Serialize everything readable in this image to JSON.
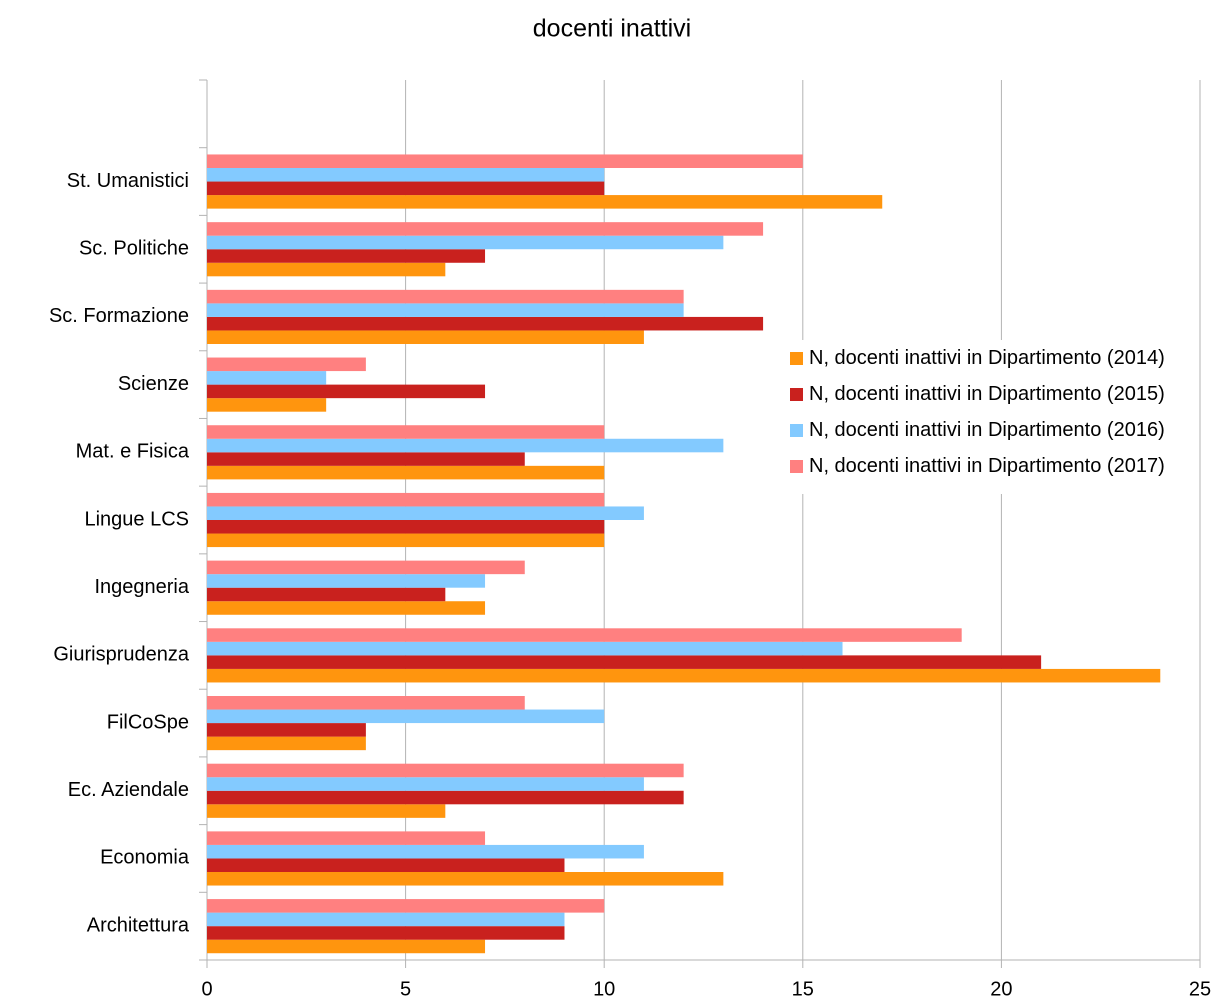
{
  "chart_data": {
    "type": "bar",
    "orientation": "horizontal",
    "title": "docenti inattivi",
    "categories": [
      "Architettura",
      "Economia",
      "Ec. Aziendale",
      "FilCoSpe",
      "Giurisprudenza",
      "Ingegneria",
      "Lingue LCS",
      "Mat. e Fisica",
      "Scienze",
      "Sc. Formazione",
      "Sc. Politiche",
      "St. Umanistici",
      null
    ],
    "series": [
      {
        "name": "N, docenti inattivi in Dipartimento (2014)",
        "color": "#ff950e",
        "values": [
          7,
          13,
          6,
          4,
          24,
          7,
          10,
          10,
          3,
          11,
          6,
          17,
          null
        ]
      },
      {
        "name": "N, docenti inattivi in Dipartimento (2015)",
        "color": "#c9211e",
        "values": [
          9,
          9,
          12,
          4,
          21,
          6,
          10,
          8,
          7,
          14,
          7,
          10,
          null
        ]
      },
      {
        "name": "N, docenti inattivi in Dipartimento (2016)",
        "color": "#83caff",
        "values": [
          9,
          11,
          11,
          10,
          16,
          7,
          11,
          13,
          3,
          12,
          13,
          10,
          null
        ]
      },
      {
        "name": "N, docenti inattivi in Dipartimento (2017)",
        "color": "#ff8080",
        "values": [
          10,
          7,
          12,
          8,
          19,
          8,
          10,
          10,
          4,
          12,
          14,
          15,
          null
        ]
      }
    ],
    "xlim": [
      0,
      25
    ],
    "xticks": [
      0,
      5,
      10,
      15,
      20,
      25
    ],
    "grid": true,
    "legend": "right"
  }
}
